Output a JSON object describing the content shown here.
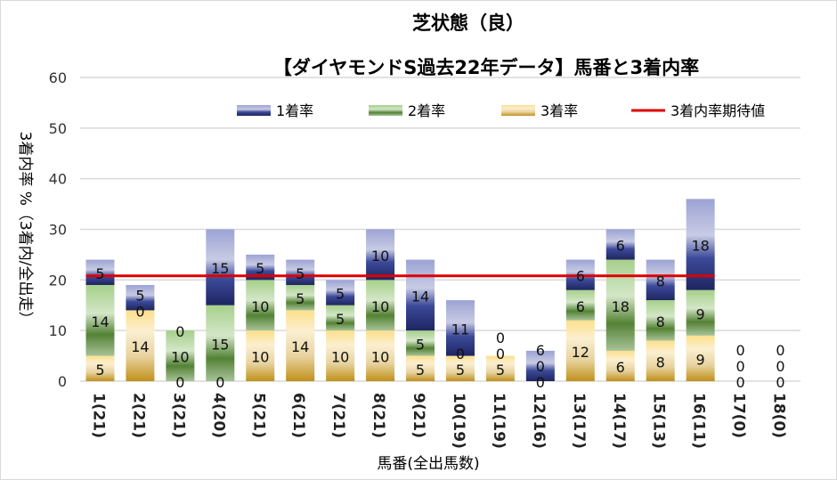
{
  "chart_data": {
    "type": "bar",
    "stacked": true,
    "title": "芝状態（良）",
    "subtitle": "【ダイヤモンドS過去22年データ】馬番と3着内率",
    "xlabel": "馬番(全出馬数)",
    "ylabel": "3着内率 %（3着内/全出走）",
    "ylim": [
      0,
      60
    ],
    "yticks": [
      0,
      10,
      20,
      30,
      40,
      50,
      60
    ],
    "grid": true,
    "legend_position": "top",
    "categories": [
      "1(21)",
      "2(21)",
      "3(21)",
      "4(20)",
      "5(21)",
      "6(21)",
      "7(21)",
      "8(21)",
      "9(21)",
      "10(19)",
      "11(19)",
      "12(16)",
      "13(17)",
      "14(17)",
      "15(13)",
      "16(11)",
      "17(0)",
      "18(0)"
    ],
    "series": [
      {
        "name": "3着率",
        "color": "#c9961a",
        "values": [
          5,
          14,
          0,
          0,
          10,
          14,
          10,
          10,
          5,
          5,
          5,
          0,
          12,
          6,
          8,
          9,
          0,
          0
        ]
      },
      {
        "name": "2着率",
        "color": "#5b8c3a",
        "values": [
          14,
          0,
          10,
          15,
          10,
          5,
          5,
          10,
          5,
          0,
          0,
          0,
          6,
          18,
          8,
          9,
          0,
          0
        ]
      },
      {
        "name": "1着率",
        "color": "#2e3a80",
        "values": [
          5,
          5,
          0,
          15,
          5,
          5,
          5,
          10,
          14,
          11,
          0,
          6,
          6,
          6,
          8,
          18,
          0,
          0
        ]
      }
    ],
    "reference_line": {
      "name": "3着内率期待値",
      "color": "#e00000",
      "value": 20.8
    }
  }
}
